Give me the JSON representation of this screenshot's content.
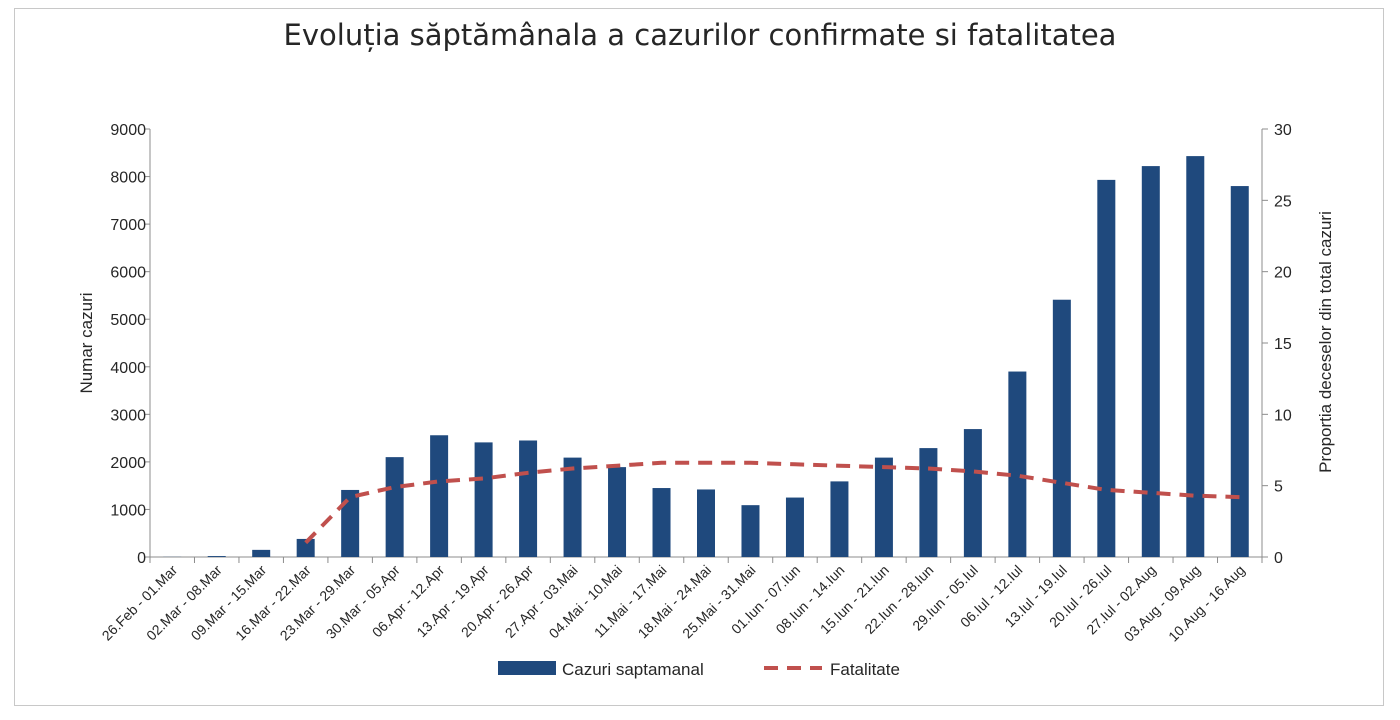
{
  "chart_data": {
    "type": "bar",
    "title": "Evoluția săptămânala a cazurilor confirmate si fatalitatea",
    "ylabel": "Numar cazuri",
    "y2label": "Proportia deceselor din total cazuri",
    "ylim": [
      0,
      9000
    ],
    "y2lim": [
      0,
      30
    ],
    "yticks": [
      "0",
      "1000",
      "2000",
      "3000",
      "4000",
      "5000",
      "6000",
      "7000",
      "8000",
      "9000"
    ],
    "y2ticks": [
      "0",
      "5",
      "10",
      "15",
      "20",
      "25",
      "30"
    ],
    "categories": [
      "26.Feb - 01.Mar",
      "02.Mar - 08.Mar",
      "09.Mar - 15.Mar",
      "16.Mar - 22.Mar",
      "23.Mar - 29.Mar",
      "30.Mar - 05.Apr",
      "06.Apr - 12.Apr",
      "13.Apr - 19.Apr",
      "20.Apr - 26.Apr",
      "27.Apr - 03.Mai",
      "04.Mai - 10.Mai",
      "11.Mai - 17.Mai",
      "18.Mai - 24.Mai",
      "25.Mai - 31.Mai",
      "01.Iun - 07.Iun",
      "08.Iun - 14.Iun",
      "15.Iun - 21.Iun",
      "22.Iun - 28.Iun",
      "29.Iun - 05.Iul",
      "06.Iul - 12.Iul",
      "13.Iul - 19.Iul",
      "20.Iul - 26.Iul",
      "27.Iul - 02.Aug",
      "03.Aug - 09.Aug",
      "10.Aug - 16.Aug"
    ],
    "series": [
      {
        "name": "Cazuri saptamanal",
        "type": "bar",
        "axis": "left",
        "color": "#1f497d",
        "values": [
          3,
          20,
          150,
          380,
          1410,
          2100,
          2560,
          2410,
          2450,
          2090,
          1890,
          1450,
          1420,
          1090,
          1250,
          1590,
          2090,
          2290,
          2690,
          3900,
          5410,
          7930,
          8220,
          8430,
          7800
        ]
      },
      {
        "name": "Fatalitate",
        "type": "line",
        "style": "dashed",
        "axis": "right",
        "color": "#c0504d",
        "start_index": 3,
        "values": [
          null,
          null,
          null,
          1.0,
          4.2,
          4.9,
          5.3,
          5.5,
          5.9,
          6.2,
          6.4,
          6.6,
          6.6,
          6.6,
          6.5,
          6.4,
          6.3,
          6.2,
          6.0,
          5.7,
          5.2,
          4.7,
          4.5,
          4.3,
          4.2
        ]
      }
    ],
    "legend_position": "bottom",
    "grid": false
  }
}
